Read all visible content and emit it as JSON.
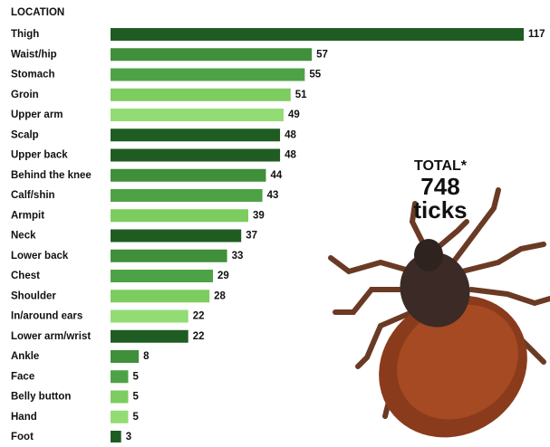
{
  "chart_data": {
    "type": "hbar",
    "axis_title": "LOCATION",
    "categories": [
      "Thigh",
      "Waist/hip",
      "Stomach",
      "Groin",
      "Upper arm",
      "Scalp",
      "Upper back",
      "Behind the knee",
      "Calf/shin",
      "Armpit",
      "Neck",
      "Lower back",
      "Chest",
      "Shoulder",
      "In/around ears",
      "Lower arm/wrist",
      "Ankle",
      "Face",
      "Belly button",
      "Hand",
      "Foot"
    ],
    "values": [
      117,
      57,
      55,
      51,
      49,
      48,
      48,
      44,
      43,
      39,
      37,
      33,
      29,
      28,
      22,
      22,
      8,
      5,
      5,
      5,
      3
    ],
    "colors": [
      "#1f5c22",
      "#3f8f3b",
      "#4ea246",
      "#7ccc5f",
      "#93dc74",
      "#1f5c22",
      "#1f5c22",
      "#3f8f3b",
      "#4ea246",
      "#7ccc5f",
      "#1f5c22",
      "#3f8f3b",
      "#4ea246",
      "#7ccc5f",
      "#93dc74",
      "#1f5c22",
      "#3f8f3b",
      "#4ea246",
      "#7ccc5f",
      "#93dc74",
      "#1f5c22"
    ],
    "annotation": {
      "label": "TOTAL*",
      "total": 748,
      "unit": "ticks"
    }
  }
}
